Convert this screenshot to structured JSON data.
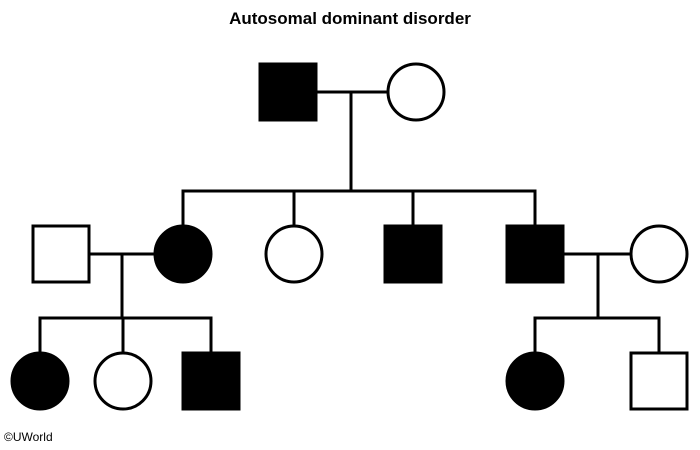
{
  "title": "Autosomal dominant disorder",
  "copyright": "©UWorld",
  "colors": {
    "affected": "#000000",
    "unaffected": "#ffffff",
    "line": "#000000"
  },
  "legend_semantics": {
    "square": "male",
    "circle": "female",
    "filled": "affected",
    "open": "unaffected"
  },
  "generations": [
    {
      "id": "I",
      "individuals": [
        {
          "id": "I-1",
          "sex": "male",
          "affected": true
        },
        {
          "id": "I-2",
          "sex": "female",
          "affected": false
        }
      ]
    },
    {
      "id": "II",
      "individuals": [
        {
          "id": "II-1",
          "sex": "male",
          "affected": false,
          "note": "spouse"
        },
        {
          "id": "II-2",
          "sex": "female",
          "affected": true
        },
        {
          "id": "II-3",
          "sex": "female",
          "affected": false
        },
        {
          "id": "II-4",
          "sex": "male",
          "affected": true
        },
        {
          "id": "II-5",
          "sex": "male",
          "affected": true
        },
        {
          "id": "II-6",
          "sex": "female",
          "affected": false,
          "note": "spouse"
        }
      ]
    },
    {
      "id": "III",
      "individuals": [
        {
          "id": "III-1",
          "sex": "female",
          "affected": true
        },
        {
          "id": "III-2",
          "sex": "female",
          "affected": false
        },
        {
          "id": "III-3",
          "sex": "male",
          "affected": true
        },
        {
          "id": "III-4",
          "sex": "female",
          "affected": true
        },
        {
          "id": "III-5",
          "sex": "male",
          "affected": false
        }
      ]
    }
  ],
  "matings": [
    {
      "partners": [
        "I-1",
        "I-2"
      ],
      "children": [
        "II-2",
        "II-3",
        "II-4",
        "II-5"
      ]
    },
    {
      "partners": [
        "II-1",
        "II-2"
      ],
      "children": [
        "III-1",
        "III-2",
        "III-3"
      ]
    },
    {
      "partners": [
        "II-5",
        "II-6"
      ],
      "children": [
        "III-4",
        "III-5"
      ]
    }
  ]
}
